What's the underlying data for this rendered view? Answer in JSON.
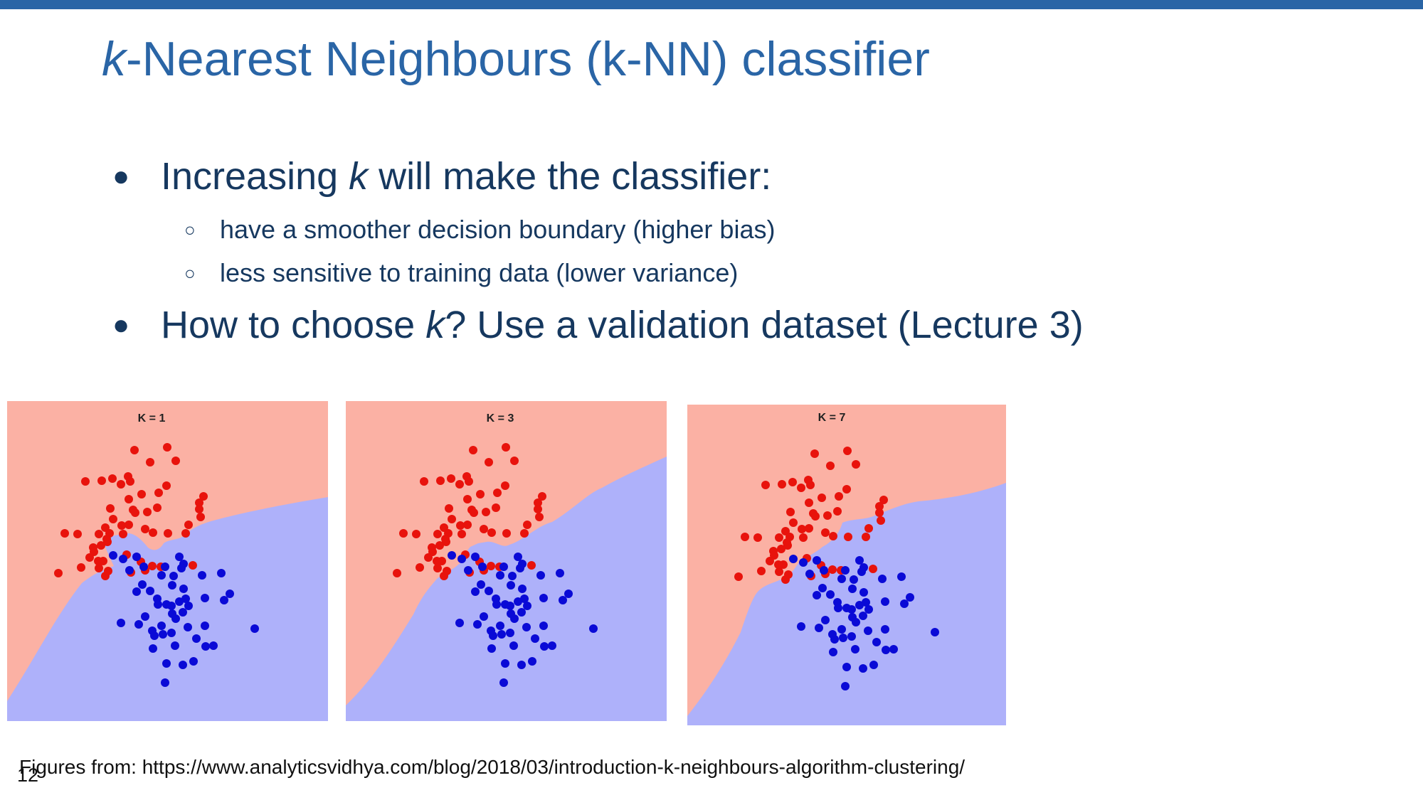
{
  "slide": {
    "title_italic": "k",
    "title_rest": "-Nearest Neighbours (k-NN) classifier",
    "bullets": [
      {
        "pre": "Increasing ",
        "it": "k",
        "post": " will make the classifier:"
      },
      {
        "text": "have a smoother decision boundary (higher bias)"
      },
      {
        "text": "less sensitive to training data (lower variance)"
      },
      {
        "pre": "How to choose ",
        "it": "k",
        "post": "? Use a validation dataset (Lecture 3)"
      }
    ],
    "bullet_glyph": "●",
    "sub_bullet_glyph": "○",
    "footer": "Figures from: https://www.analyticsvidhya.com/blog/2018/03/introduction-k-neighbours-algorithm-clustering/",
    "page_number": "12",
    "accent_color": "#2a65a6",
    "text_color": "#16385f"
  },
  "figures": {
    "panel_titles": [
      "K = 1",
      "K  = 3",
      "K = 7"
    ],
    "colors": {
      "red_region": "#fbb1a4",
      "blue_region": "#aeb1fa",
      "red_point": "#e8130c",
      "blue_point": "#0a0ad6"
    }
  }
}
